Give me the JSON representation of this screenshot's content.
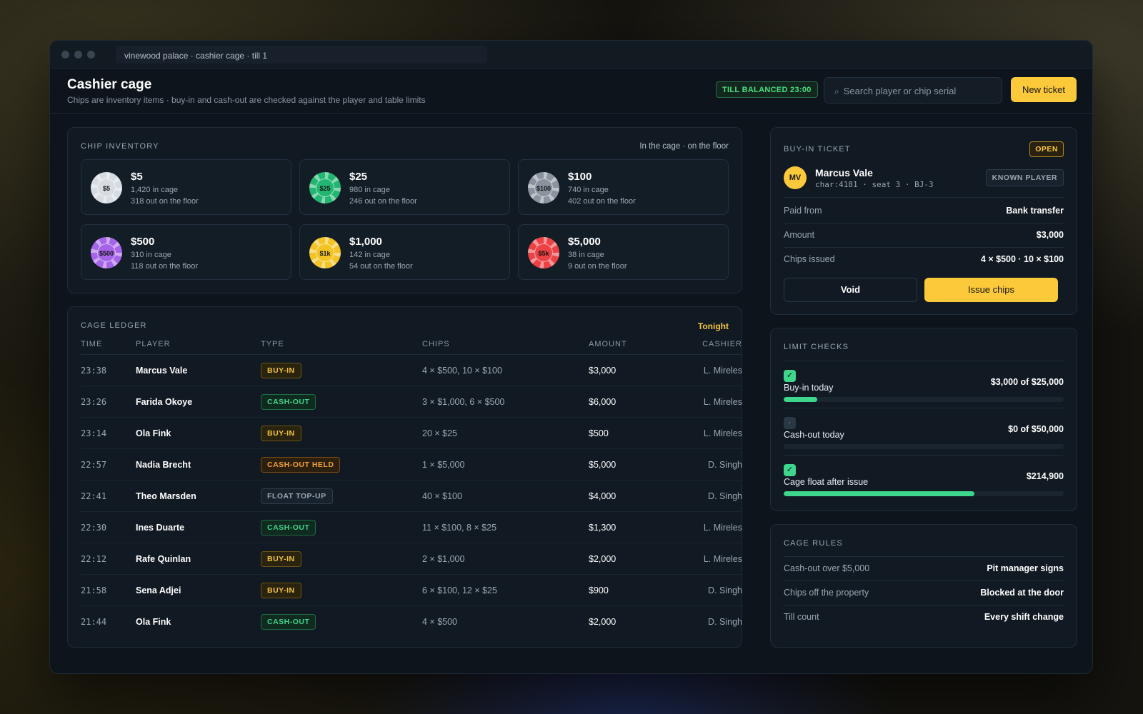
{
  "window": {
    "url": "vinewood palace · cashier cage · till 1"
  },
  "header": {
    "title": "Cashier cage",
    "subtitle": "Chips are inventory items · buy-in and cash-out are checked against the player and table limits",
    "status_badge": "TILL BALANCED 23:00",
    "search_placeholder": "Search player or chip serial",
    "new_ticket_label": "New ticket"
  },
  "inventory": {
    "title": "CHIP INVENTORY",
    "caption": "In the cage · on the floor",
    "chips": [
      {
        "chip": "$5",
        "value": "$5",
        "cage": "1,420 in cage",
        "floor": "318 out on the floor",
        "color": "#d7dce2"
      },
      {
        "chip": "$25",
        "value": "$25",
        "cage": "980 in cage",
        "floor": "246 out on the floor",
        "color": "#22b673"
      },
      {
        "chip": "$100",
        "value": "$100",
        "cage": "740 in cage",
        "floor": "402 out on the floor",
        "color": "#8a939e"
      },
      {
        "chip": "$500",
        "value": "$500",
        "cage": "310 in cage",
        "floor": "118 out on the floor",
        "color": "#a665e8"
      },
      {
        "chip": "$1k",
        "value": "$1,000",
        "cage": "142 in cage",
        "floor": "54 out on the floor",
        "color": "#f3c424"
      },
      {
        "chip": "$5k",
        "value": "$5,000",
        "cage": "38 in cage",
        "floor": "9 out on the floor",
        "color": "#ec4245"
      }
    ]
  },
  "ledger": {
    "title": "CAGE LEDGER",
    "period": "Tonight",
    "columns": [
      "TIME",
      "PLAYER",
      "TYPE",
      "CHIPS",
      "AMOUNT",
      "CASHIER"
    ],
    "rows": [
      {
        "time": "23:38",
        "player": "Marcus Vale",
        "type": "BUY-IN",
        "kind": "buy",
        "chips": "4 × $500, 10 × $100",
        "amount": "$3,000",
        "cashier": "L. Mireles"
      },
      {
        "time": "23:26",
        "player": "Farida Okoye",
        "type": "CASH-OUT",
        "kind": "cash",
        "chips": "3 × $1,000, 6 × $500",
        "amount": "$6,000",
        "cashier": "L. Mireles"
      },
      {
        "time": "23:14",
        "player": "Ola Fink",
        "type": "BUY-IN",
        "kind": "buy",
        "chips": "20 × $25",
        "amount": "$500",
        "cashier": "L. Mireles"
      },
      {
        "time": "22:57",
        "player": "Nadia Brecht",
        "type": "CASH-OUT HELD",
        "kind": "held",
        "chips": "1 × $5,000",
        "amount": "$5,000",
        "cashier": "D. Singh"
      },
      {
        "time": "22:41",
        "player": "Theo Marsden",
        "type": "FLOAT TOP-UP",
        "kind": "float",
        "chips": "40 × $100",
        "amount": "$4,000",
        "cashier": "D. Singh"
      },
      {
        "time": "22:30",
        "player": "Ines Duarte",
        "type": "CASH-OUT",
        "kind": "cash",
        "chips": "11 × $100, 8 × $25",
        "amount": "$1,300",
        "cashier": "L. Mireles"
      },
      {
        "time": "22:12",
        "player": "Rafe Quinlan",
        "type": "BUY-IN",
        "kind": "buy",
        "chips": "2 × $1,000",
        "amount": "$2,000",
        "cashier": "L. Mireles"
      },
      {
        "time": "21:58",
        "player": "Sena Adjei",
        "type": "BUY-IN",
        "kind": "buy",
        "chips": "6 × $100, 12 × $25",
        "amount": "$900",
        "cashier": "D. Singh"
      },
      {
        "time": "21:44",
        "player": "Ola Fink",
        "type": "CASH-OUT",
        "kind": "cash",
        "chips": "4 × $500",
        "amount": "$2,000",
        "cashier": "D. Singh"
      }
    ]
  },
  "ticket": {
    "title": "BUY-IN TICKET",
    "status": "OPEN",
    "initials": "MV",
    "player": "Marcus Vale",
    "meta": "char:4181 · seat 3 · BJ-3",
    "player_badge": "KNOWN PLAYER",
    "fields": [
      {
        "label": "Paid from",
        "value": "Bank transfer"
      },
      {
        "label": "Amount",
        "value": "$3,000"
      },
      {
        "label": "Chips issued",
        "value": "4 × $500 · 10 × $100"
      }
    ],
    "void_label": "Void",
    "issue_label": "Issue chips"
  },
  "limits": {
    "title": "LIMIT CHECKS",
    "items": [
      {
        "label": "Buy-in today",
        "value": "$3,000 of $25,000",
        "check": "✓",
        "ok": true,
        "fraction": 0.12
      },
      {
        "label": "Cash-out today",
        "value": "$0 of $50,000",
        "check": "·",
        "ok": false,
        "fraction": 0.0
      },
      {
        "label": "Cage float after issue",
        "value": "$214,900",
        "check": "✓",
        "ok": true,
        "fraction": 0.68
      }
    ]
  },
  "rules": {
    "title": "CAGE RULES",
    "items": [
      {
        "label": "Cash-out over $5,000",
        "value": "Pit manager signs"
      },
      {
        "label": "Chips off the property",
        "value": "Blocked at the door"
      },
      {
        "label": "Till count",
        "value": "Every shift change"
      }
    ]
  },
  "colors": {
    "accent": "#fbc93a",
    "success": "#3dd68c",
    "buy": "#f5c542",
    "held": "#f0a23c"
  }
}
